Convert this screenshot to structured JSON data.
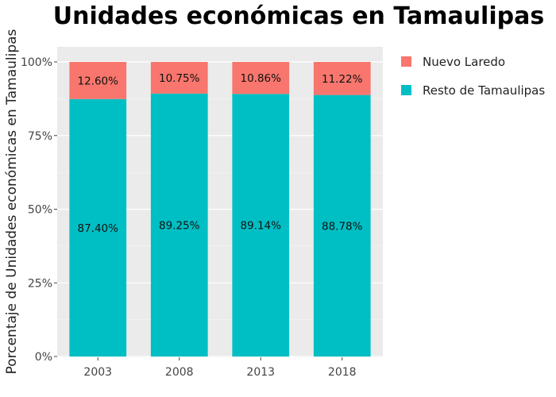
{
  "chart_data": {
    "type": "bar",
    "stacked": true,
    "title": "Unidades económicas en Tamaulipas",
    "xlabel": "",
    "ylabel": "Porcentaje de Unidades económicas en Tamaulipas",
    "categories": [
      "2003",
      "2008",
      "2013",
      "2018"
    ],
    "ylim": [
      0,
      100
    ],
    "yticks": [
      "0%",
      "25%",
      "50%",
      "75%",
      "100%"
    ],
    "grid": true,
    "legend_position": "top-right",
    "series": [
      {
        "name": "Resto de Tamaulipas",
        "values": [
          87.4,
          89.25,
          89.14,
          88.78
        ],
        "labels": [
          "87.40%",
          "89.25%",
          "89.14%",
          "88.78%"
        ],
        "color": "#00BFC4"
      },
      {
        "name": "Nuevo Laredo",
        "values": [
          12.6,
          10.75,
          10.86,
          11.22
        ],
        "labels": [
          "12.60%",
          "10.75%",
          "10.86%",
          "11.22%"
        ],
        "color": "#F8766D"
      }
    ],
    "legend_order": [
      "Nuevo Laredo",
      "Resto de Tamaulipas"
    ],
    "panel_background": "#EBEBEB",
    "gridline_color": "#FFFFFF"
  }
}
